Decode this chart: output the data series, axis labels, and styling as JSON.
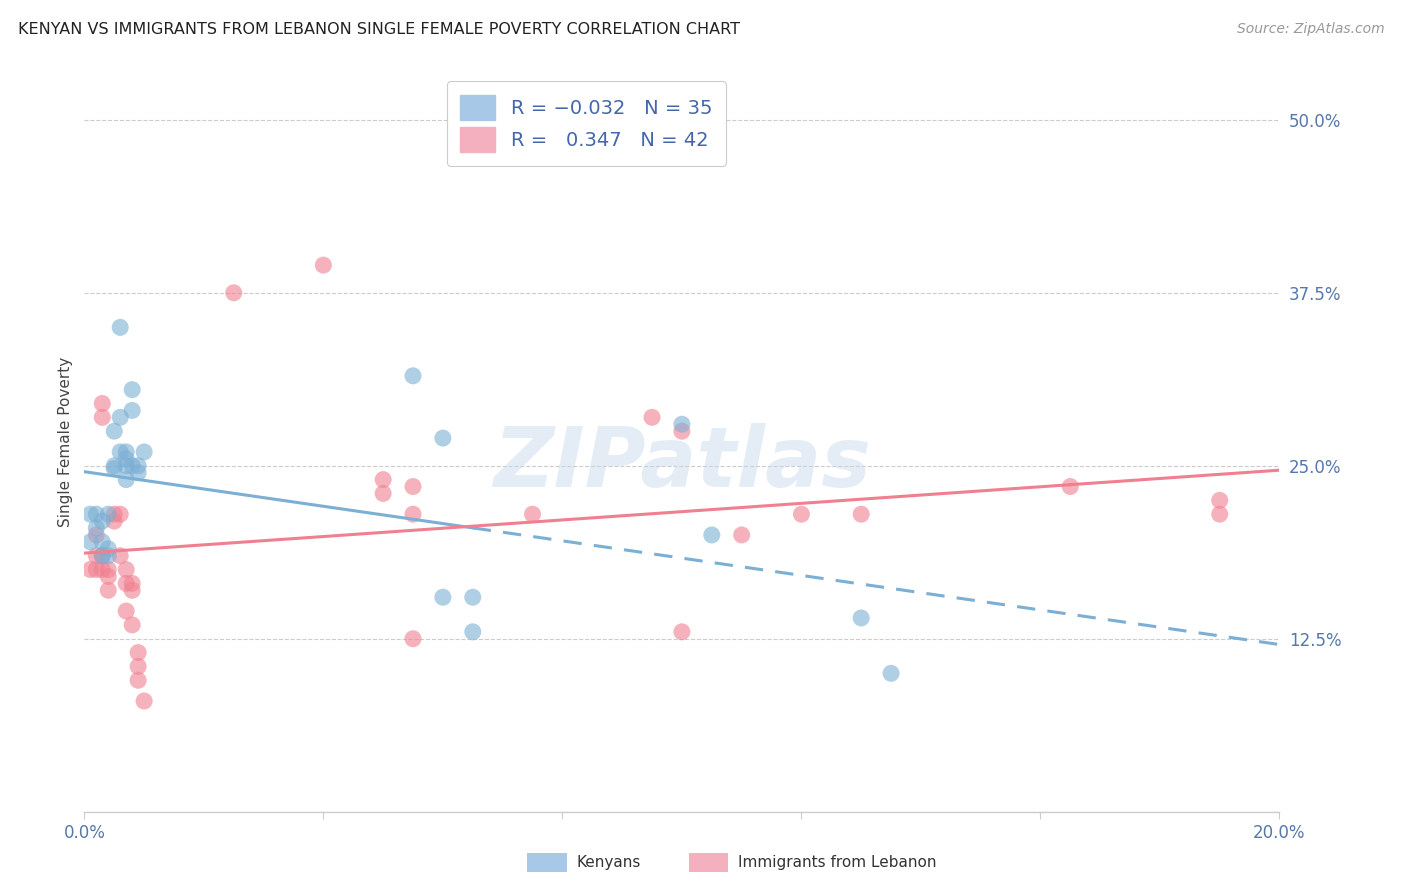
{
  "title": "KENYAN VS IMMIGRANTS FROM LEBANON SINGLE FEMALE POVERTY CORRELATION CHART",
  "source": "Source: ZipAtlas.com",
  "ylabel": "Single Female Poverty",
  "ytick_labels": [
    "",
    "12.5%",
    "25.0%",
    "37.5%",
    "50.0%"
  ],
  "ytick_values": [
    0.0,
    0.125,
    0.25,
    0.375,
    0.5
  ],
  "xlim": [
    0.0,
    0.2
  ],
  "ylim": [
    0.0,
    0.535
  ],
  "kenyan_color": "#7bafd4",
  "lebanon_color": "#f08090",
  "watermark_text": "ZIPatlas",
  "background_color": "#ffffff",
  "grid_color": "#cccccc",
  "kenyan_line_solid_end": 0.065,
  "lebanon_line_solid_end": 0.165,
  "kenyan_points": [
    [
      0.001,
      0.195
    ],
    [
      0.001,
      0.215
    ],
    [
      0.002,
      0.215
    ],
    [
      0.002,
      0.205
    ],
    [
      0.003,
      0.195
    ],
    [
      0.003,
      0.21
    ],
    [
      0.003,
      0.185
    ],
    [
      0.004,
      0.215
    ],
    [
      0.004,
      0.19
    ],
    [
      0.004,
      0.185
    ],
    [
      0.005,
      0.275
    ],
    [
      0.005,
      0.25
    ],
    [
      0.005,
      0.248
    ],
    [
      0.006,
      0.35
    ],
    [
      0.006,
      0.285
    ],
    [
      0.006,
      0.26
    ],
    [
      0.007,
      0.26
    ],
    [
      0.007,
      0.255
    ],
    [
      0.007,
      0.25
    ],
    [
      0.007,
      0.24
    ],
    [
      0.008,
      0.305
    ],
    [
      0.008,
      0.29
    ],
    [
      0.008,
      0.25
    ],
    [
      0.009,
      0.25
    ],
    [
      0.009,
      0.245
    ],
    [
      0.01,
      0.26
    ],
    [
      0.055,
      0.315
    ],
    [
      0.06,
      0.27
    ],
    [
      0.06,
      0.155
    ],
    [
      0.065,
      0.155
    ],
    [
      0.065,
      0.13
    ],
    [
      0.1,
      0.28
    ],
    [
      0.105,
      0.2
    ],
    [
      0.13,
      0.14
    ],
    [
      0.135,
      0.1
    ]
  ],
  "lebanon_points": [
    [
      0.001,
      0.175
    ],
    [
      0.002,
      0.2
    ],
    [
      0.002,
      0.185
    ],
    [
      0.002,
      0.175
    ],
    [
      0.003,
      0.295
    ],
    [
      0.003,
      0.285
    ],
    [
      0.003,
      0.185
    ],
    [
      0.003,
      0.175
    ],
    [
      0.004,
      0.175
    ],
    [
      0.004,
      0.17
    ],
    [
      0.004,
      0.16
    ],
    [
      0.005,
      0.215
    ],
    [
      0.005,
      0.21
    ],
    [
      0.006,
      0.215
    ],
    [
      0.006,
      0.185
    ],
    [
      0.007,
      0.175
    ],
    [
      0.007,
      0.165
    ],
    [
      0.007,
      0.145
    ],
    [
      0.008,
      0.165
    ],
    [
      0.008,
      0.16
    ],
    [
      0.008,
      0.135
    ],
    [
      0.009,
      0.115
    ],
    [
      0.009,
      0.105
    ],
    [
      0.009,
      0.095
    ],
    [
      0.01,
      0.08
    ],
    [
      0.025,
      0.375
    ],
    [
      0.04,
      0.395
    ],
    [
      0.05,
      0.24
    ],
    [
      0.05,
      0.23
    ],
    [
      0.055,
      0.235
    ],
    [
      0.055,
      0.215
    ],
    [
      0.055,
      0.125
    ],
    [
      0.075,
      0.215
    ],
    [
      0.095,
      0.285
    ],
    [
      0.1,
      0.275
    ],
    [
      0.1,
      0.13
    ],
    [
      0.11,
      0.2
    ],
    [
      0.12,
      0.215
    ],
    [
      0.13,
      0.215
    ],
    [
      0.165,
      0.235
    ],
    [
      0.19,
      0.225
    ],
    [
      0.19,
      0.215
    ]
  ]
}
